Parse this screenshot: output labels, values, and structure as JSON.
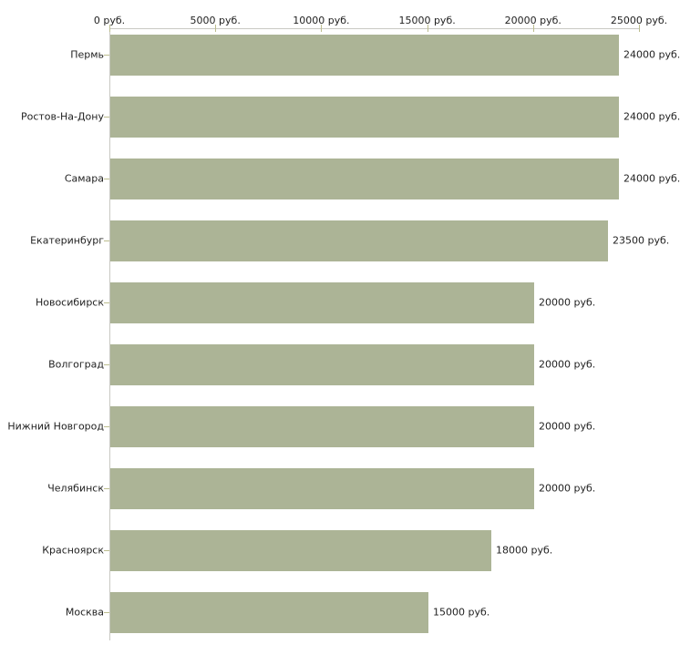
{
  "chart_data": {
    "type": "bar",
    "orientation": "horizontal",
    "title": "",
    "xlabel": "",
    "ylabel": "",
    "unit": "руб.",
    "categories": [
      "Пермь",
      "Ростов-На-Дону",
      "Самара",
      "Екатеринбург",
      "Новосибирск",
      "Волгоград",
      "Нижний Новгород",
      "Челябинск",
      "Красноярск",
      "Москва"
    ],
    "values": [
      24000,
      24000,
      24000,
      23500,
      20000,
      20000,
      20000,
      20000,
      18000,
      15000
    ],
    "value_labels": [
      "24000 руб.",
      "24000 руб.",
      "24000 руб.",
      "23500 руб.",
      "20000 руб.",
      "20000 руб.",
      "20000 руб.",
      "20000 руб.",
      "18000 руб.",
      "15000 руб."
    ],
    "x_axis": {
      "position": "top",
      "range": [
        0,
        25000
      ],
      "ticks": [
        0,
        5000,
        10000,
        15000,
        20000,
        25000
      ],
      "tick_labels": [
        "0 руб.",
        "5000 руб.",
        "10000 руб.",
        "15000 руб.",
        "20000 руб.",
        "25000 руб."
      ]
    },
    "grid": false,
    "legend": false,
    "colors": {
      "bar": "#acb496",
      "axis_line": "#c9c9c3",
      "tick_mark": "#bcbd8e",
      "text": "#222222",
      "background": "#ffffff"
    }
  }
}
